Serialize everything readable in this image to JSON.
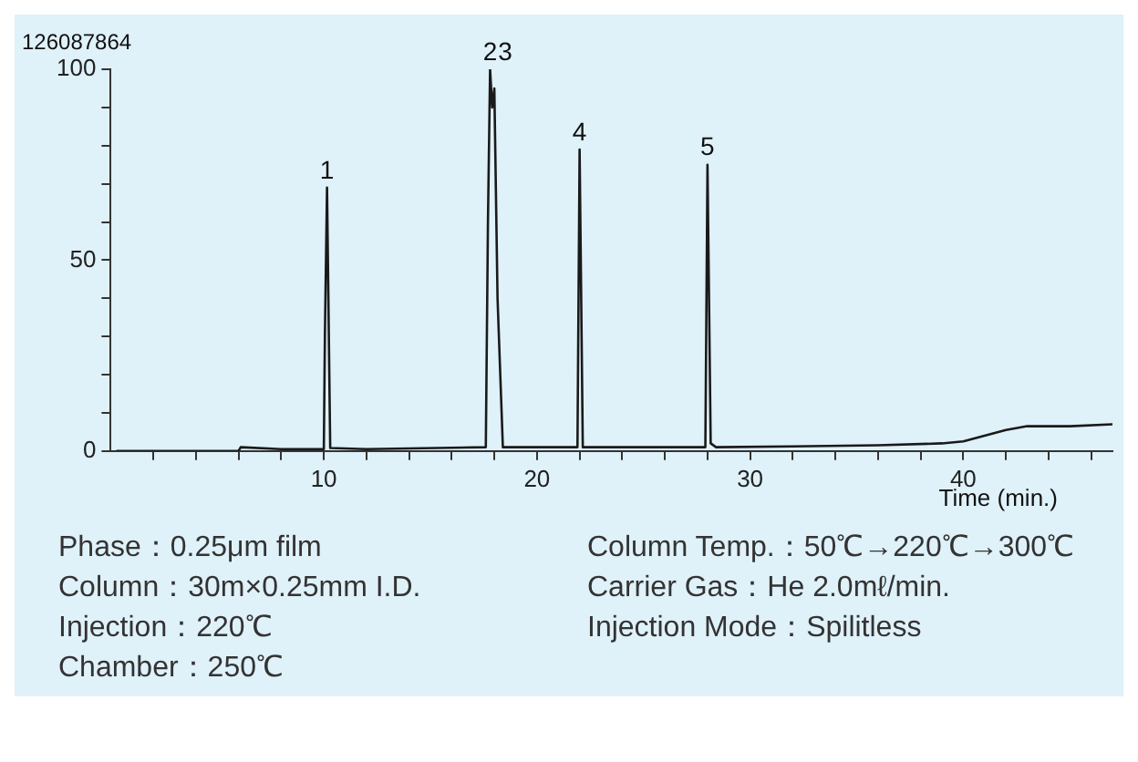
{
  "chart_data": {
    "type": "line",
    "xlabel": "Time (min.)",
    "series": [
      {
        "color": "#1a1a1a",
        "x": [
          0.3,
          6,
          6.1,
          8,
          10,
          10.05,
          10.15,
          10.3,
          12,
          17.6,
          17.7,
          17.8,
          17.9,
          18.0,
          18.15,
          18.4,
          20,
          21.9,
          22.0,
          22.15,
          25,
          27.9,
          28.0,
          28.15,
          28.4,
          32,
          36,
          39,
          40,
          41,
          42,
          43,
          45,
          47
        ],
        "values": [
          0,
          0,
          1,
          0.5,
          0.5,
          30,
          69,
          0.8,
          0.5,
          1,
          60,
          100,
          90,
          95,
          40,
          1,
          1,
          1,
          79,
          1,
          1,
          1,
          75,
          2,
          1,
          1.2,
          1.5,
          2,
          2.5,
          4,
          5.5,
          6.5,
          6.5,
          7
        ]
      }
    ],
    "xlim": [
      0,
      47
    ],
    "xticks": [
      {
        "value": 2,
        "label": null
      },
      {
        "value": 4,
        "label": null
      },
      {
        "value": 6,
        "label": null
      },
      {
        "value": 8,
        "label": null
      },
      10,
      {
        "value": 12,
        "label": null
      },
      {
        "value": 14,
        "label": null
      },
      {
        "value": 16,
        "label": null
      },
      {
        "value": 18,
        "label": null
      },
      20,
      {
        "value": 22,
        "label": null
      },
      {
        "value": 24,
        "label": null
      },
      {
        "value": 26,
        "label": null
      },
      {
        "value": 28,
        "label": null
      },
      30,
      {
        "value": 32,
        "label": null
      },
      {
        "value": 34,
        "label": null
      },
      {
        "value": 36,
        "label": null
      },
      {
        "value": 38,
        "label": null
      },
      40,
      {
        "value": 42,
        "label": null
      },
      {
        "value": 44,
        "label": null
      },
      {
        "value": 46,
        "label": null
      }
    ],
    "ylim": [
      0,
      100
    ],
    "yticks": [
      0,
      {
        "value": 10,
        "label": null
      },
      {
        "value": 20,
        "label": null
      },
      {
        "value": 30,
        "label": null
      },
      {
        "value": 40,
        "label": null
      },
      50,
      {
        "value": 60,
        "label": null
      },
      {
        "value": 70,
        "label": null
      },
      {
        "value": 80,
        "label": null
      },
      {
        "value": 90,
        "label": null
      },
      100
    ],
    "grid": false,
    "legend": false,
    "marker": "none",
    "line_style": "solid",
    "annotations": [
      "126087864",
      {
        "text": "1",
        "x": 10.15,
        "y": 69
      },
      {
        "text": "2",
        "x": 17.8,
        "y": 100
      },
      {
        "text": "3",
        "x": 18.0,
        "y": 95
      },
      {
        "text": "4",
        "x": 22.0,
        "y": 79
      },
      {
        "text": "5",
        "x": 28.0,
        "y": 75
      },
      "Phase：0.25μm film",
      "Column Temp.：50℃→220℃→300℃",
      "Column：30m×0.25mm I.D.",
      "Carrier Gas：He 2.0mℓ/min.",
      "Injection：220℃",
      "Injection Mode：Spilitless",
      "Chamber：250℃"
    ]
  }
}
